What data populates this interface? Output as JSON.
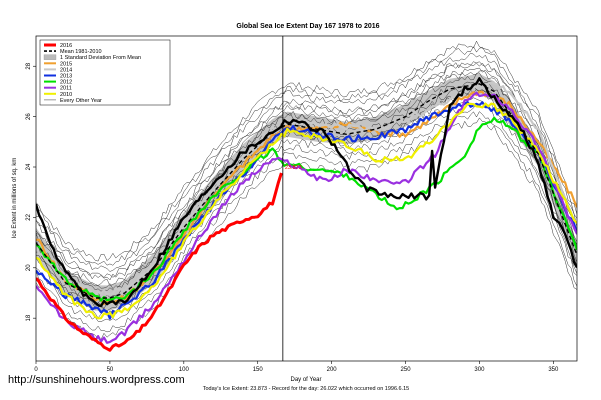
{
  "watermark": "http://sunshinehours.wordpress.com",
  "footer": "Today's Ice Extent: 23.873  - Record for the day: 26.022 which occurred on 1996.6.15",
  "chart_data": {
    "type": "line",
    "title": "Global Sea Ice Extent Day 167 1978 to 2016",
    "xlabel": "Day of Year",
    "ylabel": "Ice Extent in millions of sq. km",
    "xlim": [
      0,
      366
    ],
    "ylim": [
      16.3,
      29.2
    ],
    "x_ticks": [
      0,
      50,
      100,
      150,
      200,
      250,
      300,
      350
    ],
    "y_ticks": [
      18,
      20,
      22,
      24,
      26,
      28
    ],
    "grid": false,
    "legend_position": "top-left",
    "current_day_marker": 167,
    "current_value_label": "23.873",
    "background_years": "Every Other Year",
    "legend": [
      {
        "label": "2016",
        "color": "#ff0000",
        "style": "thick"
      },
      {
        "label": "Mean 1981-2010",
        "color": "#000000",
        "style": "dashed"
      },
      {
        "label": "1 Standard Deviation From Mean",
        "color": "#bbbbbb",
        "style": "band"
      },
      {
        "label": "2015",
        "color": "#f0a030",
        "style": "line"
      },
      {
        "label": "2014",
        "color": "#c8c8c8",
        "style": "line"
      },
      {
        "label": "2013",
        "color": "#1030e0",
        "style": "line"
      },
      {
        "label": "2012",
        "color": "#00e000",
        "style": "line"
      },
      {
        "label": "2011",
        "color": "#9a30e0",
        "style": "line"
      },
      {
        "label": "2010",
        "color": "#f0f000",
        "style": "line"
      },
      {
        "label": "Every Other Year",
        "color": "#555555",
        "style": "thin"
      }
    ],
    "mean": {
      "x": [
        0,
        20,
        40,
        50,
        60,
        80,
        100,
        120,
        140,
        160,
        170,
        190,
        210,
        230,
        250,
        265,
        280,
        300,
        310,
        320,
        340,
        366
      ],
      "y": [
        21,
        19.4,
        18.8,
        18.8,
        19,
        20,
        21.6,
        23,
        24.3,
        25.4,
        25.7,
        25.5,
        25.3,
        25.5,
        26,
        26.6,
        27.1,
        27.3,
        27,
        26.2,
        24.5,
        20.5
      ]
    },
    "std_band": {
      "x": [
        0,
        20,
        40,
        50,
        60,
        80,
        100,
        120,
        140,
        160,
        170,
        190,
        210,
        230,
        250,
        265,
        280,
        300,
        310,
        320,
        340,
        366
      ],
      "lower": [
        20.4,
        18.9,
        18.3,
        18.3,
        18.5,
        19.4,
        21,
        22.4,
        23.7,
        24.9,
        25.2,
        25,
        24.9,
        25.1,
        25.6,
        26.2,
        26.7,
        26.9,
        26.6,
        25.7,
        24,
        20
      ],
      "upper": [
        21.6,
        19.9,
        19.3,
        19.3,
        19.5,
        20.6,
        22.2,
        23.6,
        24.9,
        25.9,
        26.2,
        26,
        25.8,
        26,
        26.5,
        27,
        27.5,
        27.7,
        27.4,
        26.7,
        25,
        21
      ]
    },
    "series": [
      {
        "name": "2016",
        "color": "#ff0000",
        "width": 3,
        "x": [
          0,
          10,
          20,
          30,
          40,
          50,
          60,
          70,
          80,
          90,
          100,
          110,
          120,
          130,
          140,
          150,
          160,
          167
        ],
        "y": [
          19.6,
          18.8,
          18,
          17.5,
          17.1,
          16.8,
          17,
          17.5,
          18.2,
          19.1,
          20.1,
          20.8,
          21.3,
          21.6,
          21.9,
          22.1,
          22.6,
          23.873
        ]
      },
      {
        "name": "2015",
        "color": "#f0a030",
        "width": 2.2,
        "x": [
          0,
          20,
          40,
          50,
          60,
          80,
          100,
          120,
          140,
          160,
          170,
          190,
          210,
          230,
          250,
          270,
          290,
          300,
          310,
          320,
          340,
          366
        ],
        "y": [
          21.2,
          19.5,
          18.8,
          18.6,
          18.8,
          19.8,
          21.3,
          22.9,
          24.1,
          25.2,
          25.6,
          25.5,
          25.7,
          25.4,
          25.3,
          26,
          26.8,
          27,
          26.8,
          26.5,
          25,
          22.5
        ]
      },
      {
        "name": "2014",
        "color": "#c8c8c8",
        "width": 2.2,
        "x": [
          0,
          20,
          40,
          50,
          60,
          80,
          100,
          120,
          140,
          160,
          170,
          190,
          210,
          230,
          250,
          270,
          290,
          300,
          310,
          320,
          340,
          366
        ],
        "y": [
          20.8,
          19.6,
          19,
          19,
          19.2,
          20.1,
          21.7,
          23.2,
          24.5,
          25.5,
          25.8,
          25.7,
          25.6,
          25.5,
          25.9,
          26.4,
          27,
          27.3,
          27.3,
          27,
          25.5,
          21.5
        ]
      },
      {
        "name": "2013",
        "color": "#1030e0",
        "width": 2.2,
        "x": [
          0,
          20,
          40,
          50,
          60,
          80,
          100,
          120,
          140,
          160,
          170,
          190,
          210,
          230,
          250,
          270,
          290,
          300,
          310,
          320,
          340,
          366
        ],
        "y": [
          19.9,
          18.9,
          18.4,
          18.1,
          18.5,
          19.5,
          21.1,
          22.5,
          23.7,
          25,
          25.6,
          25.3,
          25.1,
          25.2,
          25.5,
          26.1,
          26.5,
          26.5,
          26.3,
          25.8,
          24.5,
          21.4
        ]
      },
      {
        "name": "2012",
        "color": "#00e000",
        "width": 2.2,
        "x": [
          0,
          20,
          40,
          50,
          60,
          80,
          100,
          120,
          140,
          160,
          166,
          170,
          190,
          210,
          230,
          245,
          260,
          270,
          290,
          300,
          310,
          320,
          340,
          366
        ],
        "y": [
          21,
          19.5,
          18.8,
          18.7,
          18.8,
          19.8,
          21.5,
          22.8,
          23.8,
          24.7,
          24.2,
          24.1,
          23.9,
          23.7,
          22.9,
          22.3,
          22.9,
          23.3,
          24.5,
          25.6,
          25.9,
          25.6,
          24.5,
          20.7
        ]
      },
      {
        "name": "2011",
        "color": "#9a30e0",
        "width": 2.2,
        "x": [
          0,
          20,
          40,
          50,
          60,
          80,
          100,
          120,
          140,
          160,
          170,
          190,
          200,
          210,
          230,
          240,
          250,
          270,
          290,
          300,
          310,
          320,
          340,
          366
        ],
        "y": [
          19.2,
          17.9,
          17.2,
          17.1,
          17.4,
          18.6,
          20.3,
          22,
          23.4,
          24.3,
          24.2,
          23.6,
          23.5,
          23.9,
          23.5,
          23.3,
          23.4,
          24.5,
          26.6,
          26.9,
          26.8,
          26.4,
          24.8,
          21.3
        ]
      },
      {
        "name": "2010",
        "color": "#f0f000",
        "width": 2.2,
        "x": [
          0,
          20,
          40,
          50,
          60,
          80,
          100,
          120,
          140,
          160,
          170,
          190,
          210,
          230,
          250,
          270,
          290,
          300,
          310,
          320,
          340,
          366
        ],
        "y": [
          20.4,
          18.9,
          18.1,
          18.1,
          18.3,
          19.3,
          21,
          22.5,
          23.8,
          24.9,
          25.4,
          25.2,
          24.9,
          24.3,
          24.3,
          25.2,
          26.4,
          26.5,
          26.4,
          26,
          24.6,
          21.7
        ]
      },
      {
        "name": "",
        "color": "#000000",
        "width": 2.4,
        "x": [
          0,
          5,
          10,
          20,
          30,
          40,
          50,
          60,
          80,
          100,
          120,
          140,
          160,
          168,
          175,
          185,
          195,
          205,
          215,
          225,
          235,
          250,
          260,
          266,
          267,
          270,
          280,
          290,
          300,
          310,
          320,
          330,
          340,
          350,
          360,
          366
        ],
        "y": [
          22.6,
          21.6,
          20.9,
          19.8,
          19.1,
          18.6,
          18.6,
          18.6,
          20.1,
          22,
          23.4,
          24.6,
          25.4,
          25.8,
          25.9,
          25.6,
          25.4,
          24.6,
          23.6,
          23.1,
          22.9,
          22.8,
          22.9,
          22.8,
          25.5,
          23.2,
          26.4,
          27.1,
          27.4,
          26.7,
          26.1,
          25.4,
          24.1,
          22.1,
          21.1,
          19.9
        ]
      }
    ]
  }
}
